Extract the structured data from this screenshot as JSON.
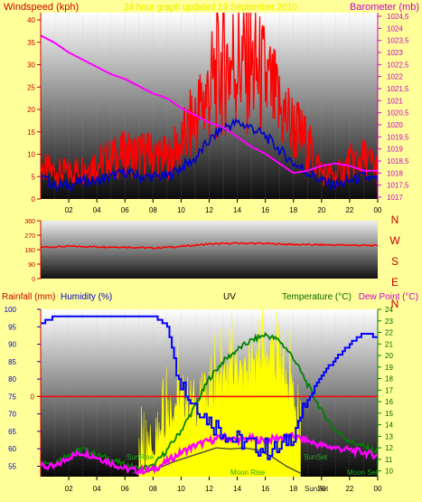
{
  "header": {
    "title_left": "Windspeed (kph)",
    "title_right": "Barometer (mb)",
    "subtitle": "24 hour graph updated 19 September 2010"
  },
  "colors": {
    "background": "#ffff99",
    "wind": "#ff0000",
    "gust": "#0000cc",
    "baro": "#ff00ff",
    "temp": "#008000",
    "dew": "#ff00ff",
    "humidity": "#0000ff",
    "rain": "#ff0000",
    "uv": "#ffff00",
    "solar": "#404040",
    "axis_label_left": "#cc0000",
    "axis_label_right": "#cc00cc"
  },
  "chart_data": [
    {
      "type": "line",
      "name": "wind-baro",
      "title": "",
      "xlabel": "",
      "x_ticks": [
        "02",
        "04",
        "06",
        "08",
        "10",
        "12",
        "14",
        "16",
        "18",
        "20",
        "22",
        "00"
      ],
      "xlim": [
        0,
        24
      ],
      "y_left": {
        "label": "Windspeed (kph)",
        "ylim": [
          0,
          40
        ],
        "ticks": [
          "0",
          "5",
          "10",
          "15",
          "20",
          "25",
          "30",
          "35",
          "40"
        ]
      },
      "y_right": {
        "label": "Barometer (mb)",
        "ylim": [
          1017,
          1024.5
        ],
        "ticks": [
          "1017",
          "1017,5",
          "1018",
          "1018,5",
          "1019",
          "1019,5",
          "1020",
          "1020,5",
          "1021",
          "1021,5",
          "1022",
          "1022,5",
          "1023",
          "1023,5",
          "1024",
          "1024,5"
        ]
      },
      "series": [
        {
          "name": "Windspeed",
          "axis": "left",
          "x": [
            0,
            1,
            2,
            3,
            4,
            5,
            6,
            7,
            8,
            9,
            10,
            11,
            12,
            13,
            14,
            15,
            16,
            17,
            18,
            19,
            20,
            21,
            22,
            23,
            24
          ],
          "y": [
            7,
            6,
            6,
            7,
            8,
            9,
            10,
            10,
            10,
            9,
            12,
            18,
            24,
            30,
            31,
            29,
            26,
            20,
            16,
            12,
            6,
            5,
            8,
            9,
            7
          ]
        },
        {
          "name": "Gust",
          "axis": "left",
          "x": [
            0,
            1,
            2,
            3,
            4,
            5,
            6,
            7,
            8,
            9,
            10,
            11,
            12,
            13,
            14,
            15,
            16,
            17,
            18,
            19,
            20,
            21,
            22,
            23,
            24
          ],
          "y": [
            5,
            3,
            3,
            4,
            4,
            5,
            6,
            5,
            5,
            5,
            7,
            9,
            13,
            16,
            17,
            16,
            14,
            11,
            8,
            6,
            4,
            3,
            4,
            5,
            4
          ]
        },
        {
          "name": "Barometer",
          "axis": "right",
          "x": [
            0,
            1,
            2,
            3,
            4,
            5,
            6,
            7,
            8,
            9,
            10,
            11,
            12,
            13,
            14,
            15,
            16,
            17,
            18,
            19,
            20,
            21,
            22,
            23,
            24
          ],
          "y": [
            1023.7,
            1023.4,
            1023.0,
            1022.7,
            1022.4,
            1022.1,
            1021.9,
            1021.6,
            1021.3,
            1021.1,
            1020.7,
            1020.4,
            1020.1,
            1019.9,
            1019.5,
            1019.1,
            1018.8,
            1018.4,
            1018.0,
            1018.1,
            1018.3,
            1018.4,
            1018.3,
            1018.1,
            1018.1
          ]
        }
      ]
    },
    {
      "type": "line",
      "name": "wind-direction",
      "title": "",
      "y_left": {
        "ylim": [
          0,
          360
        ],
        "ticks": [
          "0",
          "90",
          "180",
          "270",
          "360"
        ]
      },
      "y_right": {
        "ticks": [
          "N",
          "W",
          "S",
          "E",
          "N"
        ]
      },
      "series": [
        {
          "name": "Wind direction",
          "x": [
            0,
            2,
            4,
            6,
            8,
            10,
            12,
            14,
            16,
            18,
            20,
            22,
            24
          ],
          "y": [
            195,
            200,
            198,
            196,
            190,
            200,
            215,
            220,
            218,
            212,
            210,
            208,
            205
          ]
        }
      ]
    },
    {
      "type": "line",
      "name": "temp-humidity",
      "title": "UV",
      "legend": [
        "Rainfall (mm)",
        "Humidity (%)",
        "UV",
        "Temperature (°C)",
        "Dew Point (°C)"
      ],
      "x_ticks": [
        "02",
        "04",
        "06",
        "08",
        "10",
        "12",
        "14",
        "16",
        "18",
        "20",
        "22",
        "00"
      ],
      "xlim": [
        0,
        24
      ],
      "y_left": {
        "label": "Humidity (%)",
        "ylim": [
          52,
          100
        ],
        "ticks": [
          "55",
          "60",
          "65",
          "70",
          "75",
          "80",
          "85",
          "90",
          "95",
          "100"
        ]
      },
      "y_rain": {
        "label": "Rainfall (mm)",
        "ticks": [
          "0"
        ]
      },
      "y_right": {
        "label": "Temperature (°C)",
        "ylim": [
          9.5,
          24
        ],
        "ticks": [
          "10",
          "11",
          "12",
          "13",
          "14",
          "15",
          "16",
          "17",
          "18",
          "19",
          "20",
          "21",
          "22",
          "23",
          "24"
        ]
      },
      "annotations": [
        "SunRise",
        "Moon Rise",
        "SunSet",
        "SunSet",
        "Moon Set"
      ],
      "series": [
        {
          "name": "Humidity",
          "axis": "left",
          "x": [
            0,
            1,
            2,
            4,
            6,
            7,
            8,
            9,
            9.5,
            10,
            10.5,
            11,
            12,
            13,
            14,
            15,
            16,
            17,
            18,
            19,
            20,
            21,
            22,
            23,
            24
          ],
          "y": [
            96,
            98,
            98,
            98,
            98,
            98,
            98,
            95,
            86,
            80,
            75,
            73,
            68,
            65,
            62,
            61,
            60,
            60,
            65,
            74,
            81,
            86,
            90,
            93,
            92
          ]
        },
        {
          "name": "Temperature",
          "axis": "right",
          "x": [
            0,
            1,
            2,
            3,
            4,
            5,
            6,
            7,
            8,
            9,
            10,
            11,
            12,
            13,
            14,
            15,
            16,
            17,
            18,
            19,
            20,
            21,
            22,
            23,
            24
          ],
          "y": [
            10.8,
            10.7,
            11.5,
            11.9,
            11.4,
            11.0,
            10.5,
            10.2,
            10.4,
            11.8,
            13.5,
            15.6,
            18.0,
            19.5,
            20.5,
            21.3,
            21.8,
            21.3,
            19.8,
            17.5,
            15.2,
            13.5,
            12.6,
            12.1,
            11.6
          ]
        },
        {
          "name": "Dew Point",
          "axis": "right",
          "x": [
            0,
            1,
            2,
            3,
            4,
            5,
            6,
            7,
            8,
            9,
            10,
            11,
            12,
            13,
            14,
            15,
            16,
            17,
            18,
            19,
            20,
            21,
            22,
            23,
            24
          ],
          "y": [
            10.4,
            10.3,
            11.2,
            11.6,
            11.2,
            10.7,
            10.2,
            10.0,
            10.1,
            10.8,
            11.6,
            12.2,
            12.6,
            12.9,
            12.7,
            12.8,
            12.6,
            12.9,
            13.0,
            12.6,
            12.2,
            12.0,
            11.8,
            11.6,
            11.3
          ]
        },
        {
          "name": "Solar",
          "axis": "right",
          "x": [
            6.5,
            7.5,
            8.5,
            9.5,
            10.5,
            11.5,
            12.5,
            13.5,
            14.5,
            15.5,
            16.5,
            17.5,
            18.5
          ],
          "y": [
            9.8,
            9.9,
            10.3,
            10.8,
            11.2,
            11.6,
            12.0,
            11.9,
            12.0,
            11.8,
            11.2,
            10.4,
            9.8
          ]
        },
        {
          "name": "UV",
          "axis": "right",
          "x": [
            7,
            8,
            9,
            10,
            11,
            12,
            13,
            14,
            15,
            16,
            17,
            18,
            18.5
          ],
          "y": [
            10.2,
            12.0,
            14.5,
            15.8,
            15.2,
            16.0,
            16.6,
            18.0,
            17.2,
            19.5,
            18.0,
            16.0,
            11.0
          ]
        },
        {
          "name": "Rainfall",
          "axis": "rain",
          "x": [
            0,
            24
          ],
          "y": [
            0,
            0
          ]
        }
      ]
    }
  ],
  "panels": {
    "p3": {
      "rain_label": "Rainfall (mm)",
      "humidity_label": "Humidity (%)",
      "uv_label": "UV",
      "temp_label": "Temperature (°C)",
      "dew_label": "Dew Point (°C)",
      "sunrise": "SunRise",
      "moonrise": "Moon Rise",
      "sunset1": "SunSet",
      "sunset2": "SunSet",
      "moonset": "Moon Set"
    }
  }
}
